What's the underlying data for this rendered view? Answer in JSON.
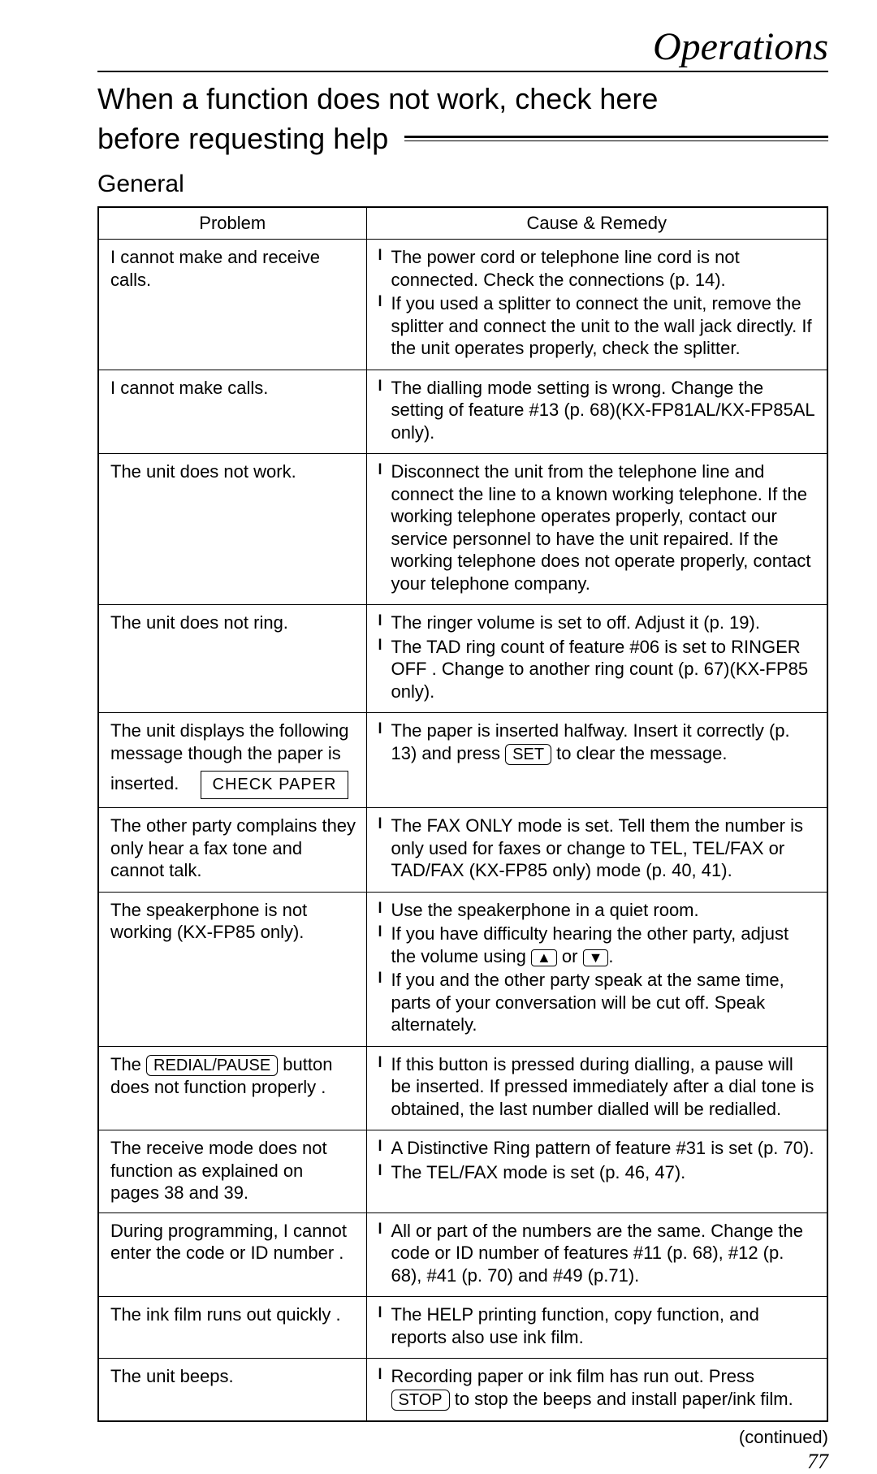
{
  "page_title": "Operations",
  "main_heading_line1": "When a function does not work, check here",
  "main_heading_line2": "before requesting help",
  "sub_heading": "General",
  "table": {
    "header_problem": "Problem",
    "header_remedy": "Cause & Remedy",
    "rows": [
      {
        "problem": "I cannot make and receive calls.",
        "remedies": [
          "The power cord or telephone line cord is not connected. Check the connections (p. 14).",
          "If you used a splitter to connect the unit, remove the splitter and connect the unit to the wall jack directly. If the unit operates properly, check the splitter."
        ]
      },
      {
        "problem": "I cannot make calls.",
        "remedies": [
          "The dialling mode setting is wrong. Change the setting of feature #13 (p. 68)(KX-FP81AL/KX-FP85AL only)."
        ]
      },
      {
        "problem": "The unit does not work.",
        "remedies": [
          "Disconnect the unit from the telephone line and connect the line to a known working telephone. If the working telephone operates properly, contact our service personnel to have the unit repaired. If the working telephone does not operate properly, contact your telephone company."
        ]
      },
      {
        "problem": "The unit does not ring.",
        "remedies": [
          "The ringer volume is set to off. Adjust it (p. 19).",
          "The TAD ring count of feature #06 is set to  RINGER OFF . Change to another ring count (p. 67)(KX-FP85 only)."
        ]
      },
      {
        "problem": "The unit displays the following message though the paper is inserted.",
        "check_paper": "CHECK PAPER",
        "remedy_html": "The paper is inserted halfway. Insert it correctly (p. 13) and press {SET} to clear the message.",
        "set_key": "SET"
      },
      {
        "problem": "The other party complains they only hear a fax tone and cannot talk.",
        "remedies": [
          "The FAX ONLY mode is set. Tell them the number is only used for faxes or change to TEL, TEL/FAX or TAD/FAX (KX-FP85 only) mode (p. 40, 41)."
        ]
      },
      {
        "problem": "The speakerphone is not working (KX-FP85 only).",
        "remedy_1": "Use the speakerphone in a quiet room.",
        "remedy_2a": "If you have difficulty hearing the other party, adjust the volume using ",
        "remedy_2b": " or ",
        "remedy_2c": ".",
        "up_arrow": "▲",
        "down_arrow": "▼",
        "remedy_3": "If you and the other party speak at the same time, parts of your conversation will be cut off. Speak alternately."
      },
      {
        "problem_pre": "The ",
        "redial_key": "REDIAL/PAUSE",
        "problem_post": " button does not function properly  .",
        "remedies": [
          "If this button is pressed during dialling, a pause will be inserted. If pressed immediately after a dial tone is obtained, the last number dialled will be redialled."
        ]
      },
      {
        "problem": "The receive mode does not function as explained on pages 38 and 39.",
        "remedies": [
          "A Distinctive Ring pattern of feature #31 is set (p. 70).",
          "The TEL/FAX mode is set (p. 46, 47)."
        ]
      },
      {
        "problem": "During programming, I cannot enter the code or ID number  .",
        "remedies": [
          "All or part of the numbers are the same. Change the code or ID number of features #11 (p. 68), #12 (p. 68), #41 (p. 70) and #49 (p.71)."
        ]
      },
      {
        "problem": "The ink film runs out quickly   .",
        "remedies": [
          "The HELP printing function, copy function, and reports also use ink film."
        ]
      },
      {
        "problem": "The unit beeps.",
        "remedy_pre": "Recording paper or ink film has run out. Press ",
        "stop_key": "STOP",
        "remedy_post": " to stop the beeps and install paper/ink film."
      }
    ]
  },
  "continued": "(continued)",
  "page_number": "77"
}
